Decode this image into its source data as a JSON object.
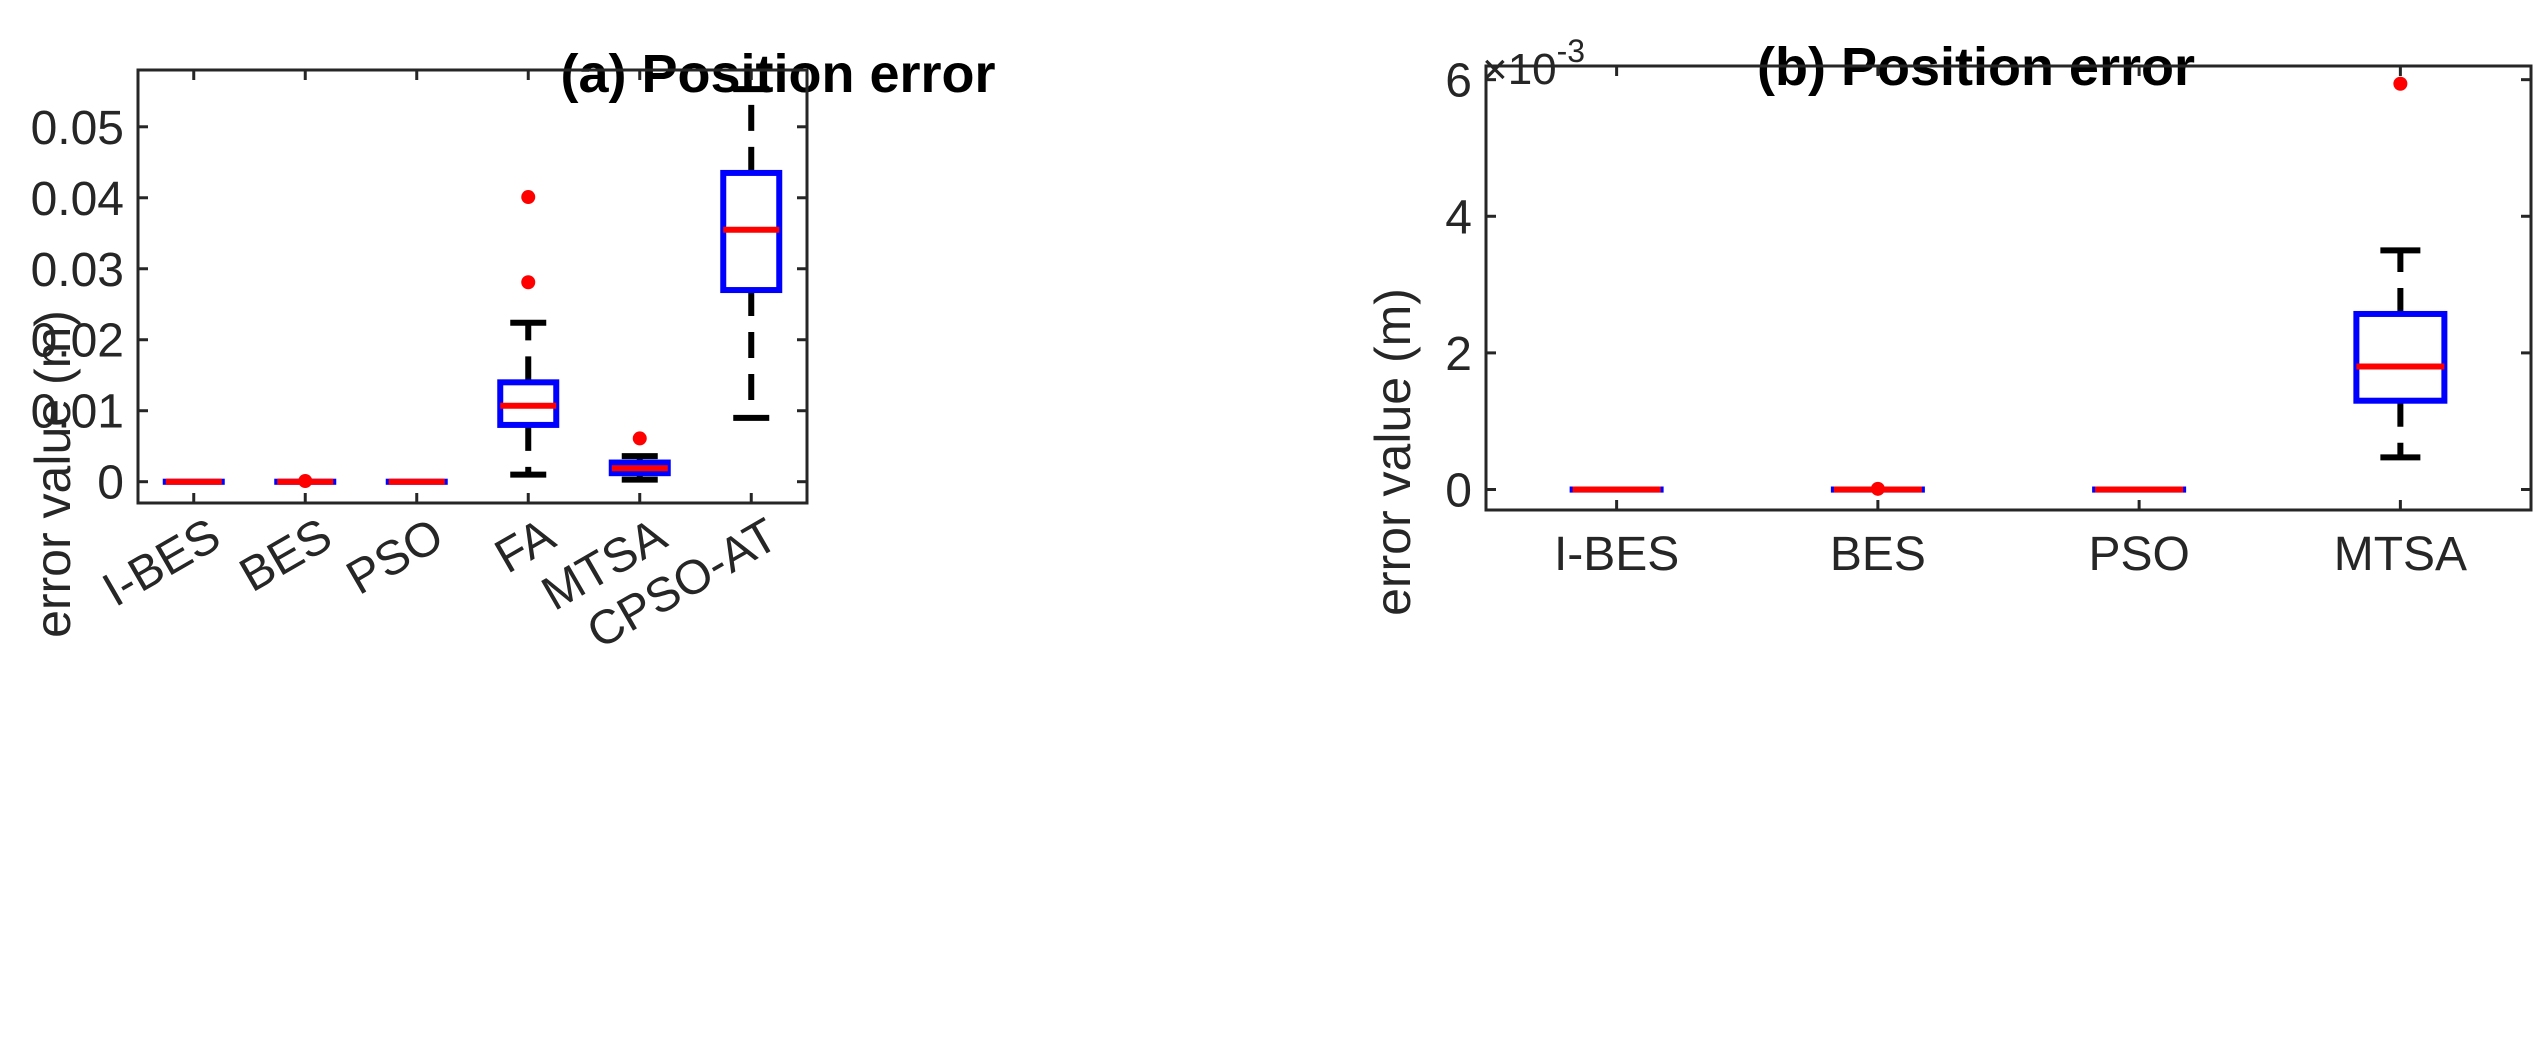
{
  "chart_data": [
    {
      "type": "boxplot",
      "title": "(a) Position error",
      "xlabel": "",
      "ylabel": "error value (m)",
      "ylim": [
        -0.003,
        0.058
      ],
      "yticks": [
        0,
        0.01,
        0.02,
        0.03,
        0.04,
        0.05
      ],
      "ytick_labels": [
        "0",
        "0.01",
        "0.02",
        "0.03",
        "0.04",
        "0.05"
      ],
      "xtick_rotation": -30,
      "colors": {
        "box": "#0000ff",
        "median": "#ff0000",
        "whisker": "#000000",
        "outlier": "#ff0000"
      },
      "categories": [
        "I-BES",
        "BES",
        "PSO",
        "FA",
        "MTSA",
        "CPSO-AT"
      ],
      "boxes": [
        {
          "whisker_low": 0,
          "q1": 0,
          "median": 0,
          "q3": 0,
          "whisker_high": 0,
          "outliers": []
        },
        {
          "whisker_low": 0,
          "q1": 0,
          "median": 0,
          "q3": 0,
          "whisker_high": 0,
          "outliers": [
            0.0001
          ]
        },
        {
          "whisker_low": 0,
          "q1": 0,
          "median": 0,
          "q3": 0,
          "whisker_high": 0,
          "outliers": []
        },
        {
          "whisker_low": 0.001,
          "q1": 0.008,
          "median": 0.0107,
          "q3": 0.014,
          "whisker_high": 0.0224,
          "outliers": [
            0.0281,
            0.0401
          ]
        },
        {
          "whisker_low": 0.0003,
          "q1": 0.0012,
          "median": 0.0019,
          "q3": 0.0027,
          "whisker_high": 0.0036,
          "outliers": [
            0.0061
          ]
        },
        {
          "whisker_low": 0.009,
          "q1": 0.027,
          "median": 0.0355,
          "q3": 0.0435,
          "whisker_high": 0.0553,
          "outliers": []
        }
      ]
    },
    {
      "type": "boxplot",
      "title": "(b) Position error",
      "xlabel": "",
      "ylabel": "error value (m)",
      "axis_multiplier": "×10",
      "axis_exponent": "-3",
      "ylim": [
        -0.0003,
        0.0062
      ],
      "yticks": [
        0,
        0.002,
        0.004,
        0.006
      ],
      "ytick_labels": [
        "0",
        "2",
        "4",
        "6"
      ],
      "xtick_rotation": 0,
      "colors": {
        "box": "#0000ff",
        "median": "#ff0000",
        "whisker": "#000000",
        "outlier": "#ff0000"
      },
      "categories": [
        "I-BES",
        "BES",
        "PSO",
        "MTSA"
      ],
      "boxes": [
        {
          "whisker_low": 0,
          "q1": 0,
          "median": 0,
          "q3": 0,
          "whisker_high": 0,
          "outliers": []
        },
        {
          "whisker_low": 0,
          "q1": 0,
          "median": 0,
          "q3": 0,
          "whisker_high": 0,
          "outliers": [
            1e-05
          ]
        },
        {
          "whisker_low": 0,
          "q1": 0,
          "median": 0,
          "q3": 0,
          "whisker_high": 0,
          "outliers": []
        },
        {
          "whisker_low": 0.00047,
          "q1": 0.0013,
          "median": 0.0018,
          "q3": 0.00257,
          "whisker_high": 0.0035,
          "outliers": [
            0.00594
          ]
        }
      ]
    }
  ]
}
